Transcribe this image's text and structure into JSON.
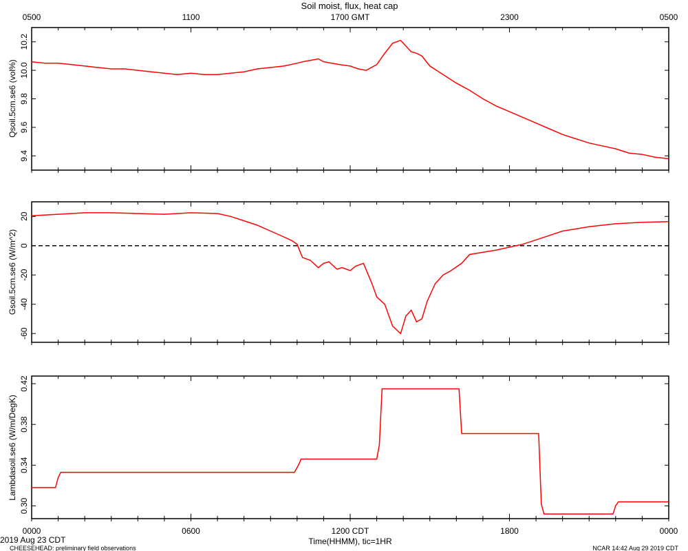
{
  "title": "Soil moist, flux, heat cap",
  "top_axis": {
    "ticks": [
      "0500",
      "1100",
      "1700 GMT",
      "2300",
      "0500"
    ]
  },
  "bottom_axis": {
    "ticks": [
      "0000",
      "0600",
      "1200 CDT",
      "1800",
      "0000"
    ],
    "label": "Time(HHMM), tic=1HR"
  },
  "footer": {
    "date": "2019 Aug 23 CDT",
    "project": "CHEESEHEAD: preliminary field observations",
    "stamp": "NCAR 14:42 Aug 29 2019 CDT"
  },
  "chart_data": [
    {
      "type": "line",
      "ylabel": "Qsoil.5cm.se6 (vol%)",
      "x_unit": "hours since 0000 CDT",
      "xlim": [
        0,
        24
      ],
      "ylim": [
        9.3,
        10.3
      ],
      "yticks": [
        "9.4",
        "9.6",
        "9.8",
        "10.0",
        "10.2"
      ],
      "ytick_values": [
        9.4,
        9.6,
        9.8,
        10.0,
        10.2
      ],
      "color": "#ff0000",
      "series": [
        {
          "x": [
            0,
            0.5,
            1,
            1.5,
            2,
            2.5,
            3,
            3.5,
            4,
            4.5,
            5,
            5.5,
            6,
            6.5,
            7,
            7.5,
            8,
            8.5,
            9,
            9.5,
            10,
            10.2,
            10.5,
            10.8,
            11,
            11.3,
            11.6,
            12,
            12.3,
            12.6,
            13,
            13.3,
            13.6,
            13.9,
            14.1,
            14.3,
            14.5,
            14.7,
            15,
            15.5,
            16,
            16.5,
            17,
            17.5,
            18,
            18.5,
            19,
            19.5,
            20,
            20.5,
            21,
            21.5,
            22,
            22.5,
            23,
            23.5,
            24
          ],
          "y": [
            10.06,
            10.05,
            10.05,
            10.04,
            10.03,
            10.02,
            10.01,
            10.01,
            10.0,
            9.99,
            9.98,
            9.97,
            9.98,
            9.97,
            9.97,
            9.98,
            9.99,
            10.01,
            10.02,
            10.03,
            10.05,
            10.06,
            10.07,
            10.08,
            10.06,
            10.05,
            10.04,
            10.03,
            10.01,
            10.0,
            10.04,
            10.12,
            10.19,
            10.21,
            10.17,
            10.13,
            10.12,
            10.1,
            10.03,
            9.97,
            9.91,
            9.86,
            9.8,
            9.75,
            9.71,
            9.67,
            9.63,
            9.59,
            9.55,
            9.52,
            9.49,
            9.47,
            9.45,
            9.42,
            9.41,
            9.39,
            9.38
          ]
        }
      ]
    },
    {
      "type": "line",
      "ylabel": "Gsoil.5cm.se6 (W/m^2)",
      "x_unit": "hours since 0000 CDT",
      "xlim": [
        0,
        24
      ],
      "ylim": [
        -66,
        30
      ],
      "yticks": [
        "-60",
        "-40",
        "-20",
        "0",
        "20"
      ],
      "ytick_values": [
        -60,
        -40,
        -20,
        0,
        20
      ],
      "reference_line": 0,
      "color": "#ff0000",
      "series": [
        {
          "x": [
            0,
            1,
            2,
            3,
            4,
            5,
            6,
            7,
            7.5,
            8,
            8.5,
            9,
            9.5,
            9.8,
            10,
            10.2,
            10.5,
            10.8,
            11,
            11.2,
            11.5,
            11.7,
            12,
            12.2,
            12.5,
            12.8,
            13,
            13.3,
            13.6,
            13.9,
            14.1,
            14.3,
            14.5,
            14.7,
            14.9,
            15.2,
            15.5,
            15.8,
            16.2,
            16.5,
            17,
            17.5,
            18,
            18.5,
            19,
            19.5,
            20,
            21,
            22,
            23,
            24
          ],
          "y": [
            20.5,
            21.5,
            22.5,
            22.5,
            22,
            21.5,
            22.5,
            22,
            20,
            17,
            14,
            10,
            6,
            3.5,
            1,
            -8,
            -10,
            -15,
            -12,
            -11,
            -16,
            -15,
            -17,
            -14,
            -12,
            -25,
            -35,
            -40,
            -55,
            -60,
            -48,
            -44,
            -52,
            -50,
            -38,
            -26,
            -20,
            -17,
            -12,
            -6,
            -4.5,
            -3,
            -1,
            1,
            4,
            7,
            10,
            13,
            15,
            16,
            16.5
          ]
        }
      ]
    },
    {
      "type": "line",
      "ylabel": "Lambdasoil.se6 (W/m/DegK)",
      "x_unit": "hours since 0000 CDT",
      "xlim": [
        0,
        24
      ],
      "ylim": [
        0.2875,
        0.4275
      ],
      "yticks": [
        "0.30",
        "0.34",
        "0.38",
        "0.42"
      ],
      "ytick_values": [
        0.3,
        0.34,
        0.38,
        0.42
      ],
      "color": "#ff0000",
      "series": [
        {
          "x": [
            0,
            0.9,
            1.0,
            1.1,
            9.9,
            10.05,
            10.15,
            13.0,
            13.1,
            13.2,
            16.1,
            16.2,
            19.1,
            19.2,
            19.3,
            21.9,
            22.0,
            22.1,
            24
          ],
          "y": [
            0.318,
            0.318,
            0.328,
            0.333,
            0.333,
            0.34,
            0.346,
            0.346,
            0.36,
            0.415,
            0.415,
            0.371,
            0.371,
            0.302,
            0.292,
            0.292,
            0.3,
            0.304,
            0.304
          ]
        }
      ]
    }
  ]
}
